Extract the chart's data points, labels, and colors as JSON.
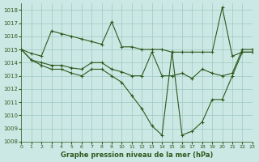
{
  "title": "Graphe pression niveau de la mer (hPa)",
  "bg_color": "#cce8e4",
  "grid_color": "#9dc8c2",
  "line_color": "#2d5a1e",
  "ylim": [
    1008,
    1018.5
  ],
  "xlim": [
    0,
    23
  ],
  "yticks": [
    1008,
    1009,
    1010,
    1011,
    1012,
    1013,
    1014,
    1015,
    1016,
    1017,
    1018
  ],
  "xticks": [
    0,
    1,
    2,
    3,
    4,
    5,
    6,
    7,
    8,
    9,
    10,
    11,
    12,
    13,
    14,
    15,
    16,
    17,
    18,
    19,
    20,
    21,
    22,
    23
  ],
  "lines": [
    {
      "x": [
        0,
        1,
        2,
        3,
        4,
        5,
        6,
        7,
        8,
        9,
        10,
        11,
        12,
        13,
        14,
        15,
        16,
        17,
        18,
        19,
        20,
        21,
        22,
        23
      ],
      "y": [
        1015.0,
        1014.7,
        1014.5,
        1016.4,
        1016.2,
        1016.0,
        1015.8,
        1015.6,
        1015.4,
        1017.1,
        1015.2,
        1015.2,
        1015.0,
        1015.0,
        1015.0,
        1014.8,
        1014.8,
        1014.8,
        1014.8,
        1014.8,
        1018.2,
        1014.5,
        1014.8,
        1014.8
      ]
    },
    {
      "x": [
        0,
        1,
        2,
        3,
        4,
        5,
        6,
        7,
        8,
        9,
        10,
        11,
        12,
        13,
        14,
        15,
        16,
        17,
        18,
        19,
        20,
        21,
        22,
        23
      ],
      "y": [
        1015.0,
        1014.2,
        1014.0,
        1013.8,
        1013.8,
        1013.6,
        1013.5,
        1014.0,
        1014.0,
        1013.5,
        1013.3,
        1013.0,
        1013.0,
        1014.8,
        1013.0,
        1013.0,
        1013.2,
        1012.8,
        1013.5,
        1013.2,
        1013.0,
        1013.2,
        1015.0,
        1015.0
      ]
    },
    {
      "x": [
        0,
        1,
        2,
        3,
        4,
        5,
        6,
        7,
        8,
        9,
        10,
        11,
        12,
        13,
        14,
        15,
        16,
        17,
        18,
        19,
        20,
        21,
        22,
        23
      ],
      "y": [
        1015.0,
        1014.2,
        1013.8,
        1013.5,
        1013.5,
        1013.2,
        1013.0,
        1013.5,
        1013.5,
        1013.0,
        1012.5,
        1011.5,
        1010.5,
        1009.2,
        1008.5,
        1014.8,
        1008.5,
        1008.8,
        1009.5,
        1011.2,
        1011.2,
        1013.0,
        1014.8,
        1014.8
      ]
    }
  ]
}
